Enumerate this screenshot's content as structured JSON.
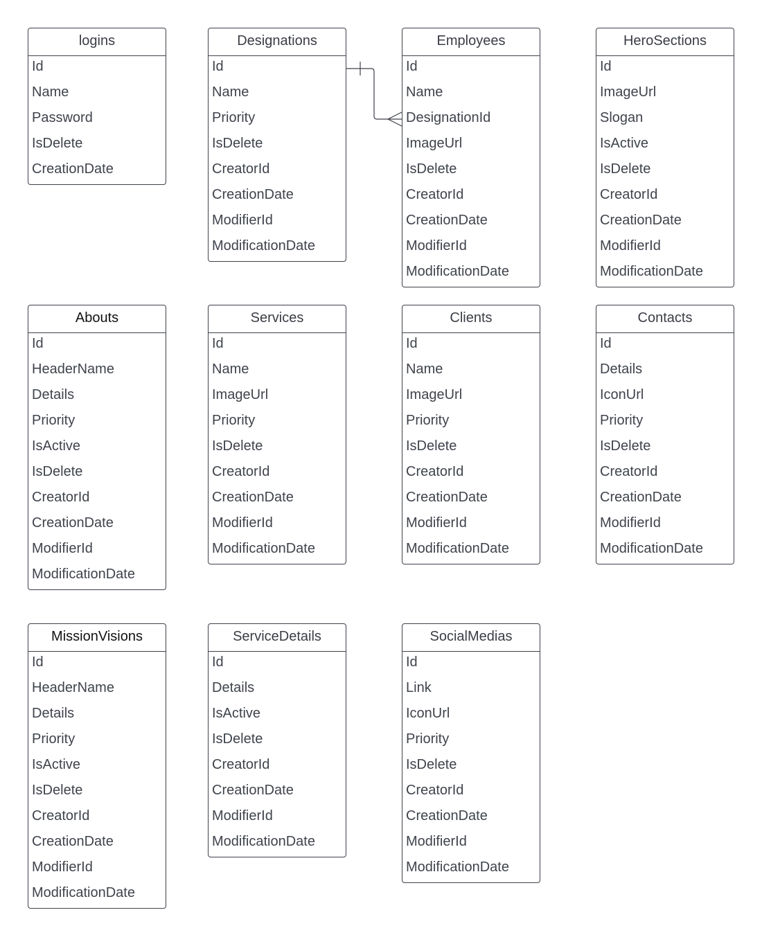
{
  "diagram": {
    "entities": [
      {
        "key": "logins",
        "name": "logins",
        "fields": [
          "Id",
          "Name",
          "Password",
          "IsDelete",
          "CreationDate"
        ]
      },
      {
        "key": "designations",
        "name": "Designations",
        "fields": [
          "Id",
          "Name",
          "Priority",
          "IsDelete",
          "CreatorId",
          "CreationDate",
          "ModifierId",
          "ModificationDate"
        ]
      },
      {
        "key": "employees",
        "name": "Employees",
        "fields": [
          "Id",
          "Name",
          "DesignationId",
          "ImageUrl",
          "IsDelete",
          "CreatorId",
          "CreationDate",
          "ModifierId",
          "ModificationDate"
        ]
      },
      {
        "key": "herosections",
        "name": "HeroSections",
        "fields": [
          "Id",
          "ImageUrl",
          "Slogan",
          "IsActive",
          "IsDelete",
          "CreatorId",
          "CreationDate",
          "ModifierId",
          "ModificationDate"
        ]
      },
      {
        "key": "abouts",
        "name": "Abouts",
        "fields": [
          "Id",
          "HeaderName",
          "Details",
          "Priority",
          "IsActive",
          "IsDelete",
          "CreatorId",
          "CreationDate",
          "ModifierId",
          "ModificationDate"
        ]
      },
      {
        "key": "services",
        "name": "Services",
        "fields": [
          "Id",
          "Name",
          "ImageUrl",
          "Priority",
          "IsDelete",
          "CreatorId",
          "CreationDate",
          "ModifierId",
          "ModificationDate"
        ]
      },
      {
        "key": "clients",
        "name": "Clients",
        "fields": [
          "Id",
          "Name",
          "ImageUrl",
          "Priority",
          "IsDelete",
          "CreatorId",
          "CreationDate",
          "ModifierId",
          "ModificationDate"
        ]
      },
      {
        "key": "contacts",
        "name": "Contacts",
        "fields": [
          "Id",
          "Details",
          "IconUrl",
          "Priority",
          "IsDelete",
          "CreatorId",
          "CreationDate",
          "ModifierId",
          "ModificationDate"
        ]
      },
      {
        "key": "missionvisions",
        "name": "MissionVisions",
        "fields": [
          "Id",
          "HeaderName",
          "Details",
          "Priority",
          "IsActive",
          "IsDelete",
          "CreatorId",
          "CreationDate",
          "ModifierId",
          "ModificationDate"
        ]
      },
      {
        "key": "servicedetails",
        "name": "ServiceDetails",
        "fields": [
          "Id",
          "Details",
          "IsActive",
          "IsDelete",
          "CreatorId",
          "CreationDate",
          "ModifierId",
          "ModificationDate"
        ]
      },
      {
        "key": "socialmedias",
        "name": "SocialMedias",
        "fields": [
          "Id",
          "Link",
          "IconUrl",
          "Priority",
          "IsDelete",
          "CreatorId",
          "CreationDate",
          "ModifierId",
          "ModificationDate"
        ]
      }
    ],
    "relationships": [
      {
        "from": "Designations.Id",
        "to": "Employees.DesignationId",
        "from_cardinality": "one",
        "to_cardinality": "many"
      }
    ]
  }
}
